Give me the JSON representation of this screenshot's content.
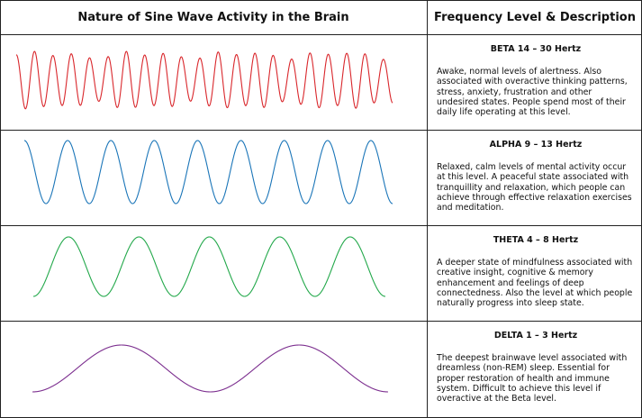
{
  "header": {
    "left": "Nature of Sine Wave Activity in the Brain",
    "right": "Frequency Level & Description"
  },
  "rows": [
    {
      "key": "beta",
      "title": "BETA 14 – 30 Hertz",
      "description": "Awake, normal levels of alertness. Also associated with overactive thinking patterns, stress, anxiety, frustration and other undesired states. People spend most of their daily life operating at this level.",
      "color": "#d9262b",
      "cycles": 20.5,
      "amplitude_variation": "irregular"
    },
    {
      "key": "alpha",
      "title": "ALPHA 9 – 13 Hertz",
      "description": "Relaxed, calm levels of mental activity occur at this level.  A peaceful state associated with tranquillity and relaxation, which people can achieve through effective relaxation exercises and meditation.",
      "color": "#1a75b8",
      "cycles": 8.5
    },
    {
      "key": "theta",
      "title": "THETA 4 – 8 Hertz",
      "description": "A deeper state of mindfulness associated with creative insight, cognitive & memory enhancement and feelings of deep connectedness.  Also the level at which people naturally progress into sleep state.",
      "color": "#22a84a",
      "cycles": 5
    },
    {
      "key": "delta",
      "title": "DELTA 1 – 3 Hertz",
      "description": "The deepest brainwave level associated with dreamless (non-REM) sleep. Essential for proper restoration of health and immune system.  Difficult to achieve this level if overactive at the Beta level.",
      "color": "#7b2d8e",
      "cycles": 2
    }
  ]
}
